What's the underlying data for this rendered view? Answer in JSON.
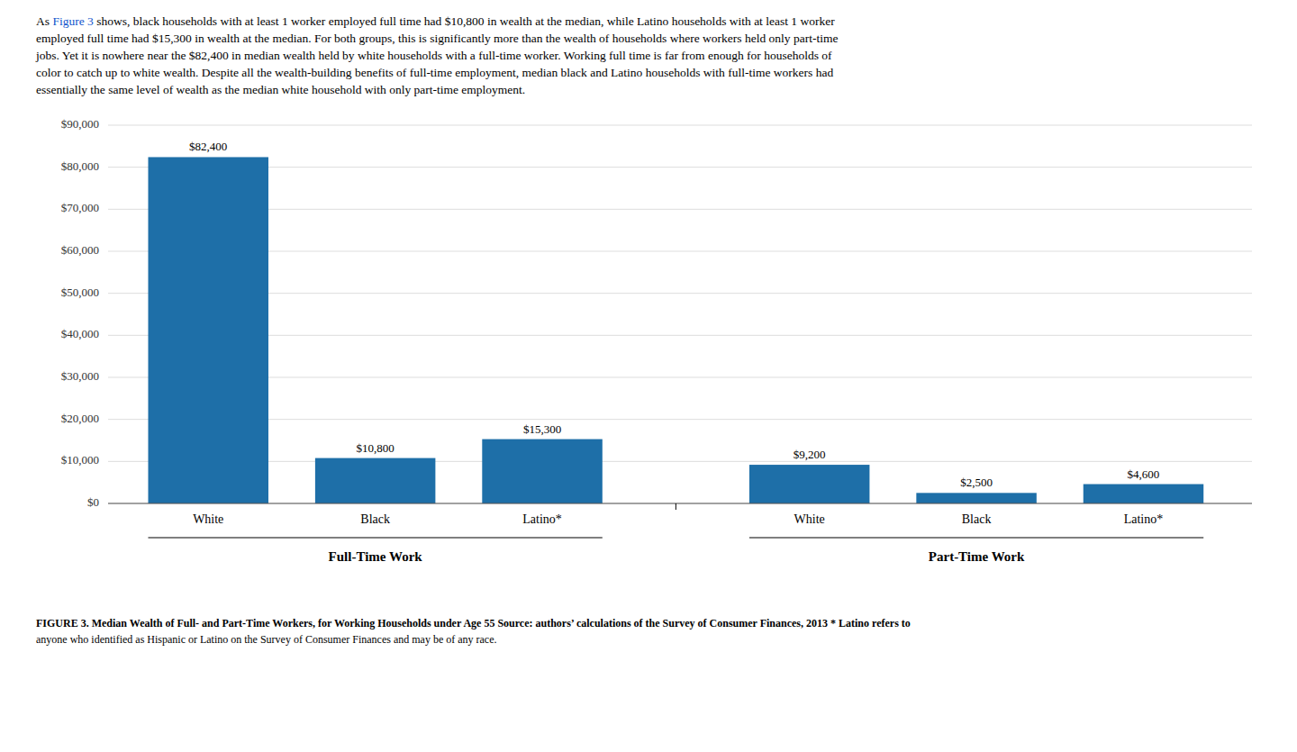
{
  "chart_data": {
    "type": "bar",
    "paragraph": {
      "before": "As ",
      "link": "Figure 3",
      "after": [
        " shows, black households with at least 1 worker employed full time had $10,800 in wealth at the median, while Latino households with at least 1 worker",
        "employed full time had $15,300 in wealth at the median. For both groups, this is significantly more than the wealth of households where workers held only part-time",
        "jobs. Yet it is nowhere near the $82,400 in median wealth held by white households with a full-time worker. Working full time is far from enough for households of",
        "color to catch up to white wealth. Despite all the wealth-building benefits of full-time employment, median black and Latino households with full-time workers had",
        "essentially the same level of wealth as the median white household with only part-time employment."
      ]
    },
    "categories": [
      "White",
      "Black",
      "Latino*",
      "White",
      "Black",
      "Latino*"
    ],
    "group_labels": [
      "Full-Time Work",
      "Part-Time Work"
    ],
    "values": [
      82400,
      10800,
      15300,
      9200,
      2500,
      4600
    ],
    "value_labels": [
      "$82,400",
      "$10,800",
      "$15,300",
      "$9,200",
      "$2,500",
      "$4,600"
    ],
    "data_labels": true,
    "color": "#1E6FA8",
    "ylim": [
      0,
      90000
    ],
    "yticks": [
      {
        "value": 0,
        "label": "$0"
      },
      {
        "value": 10000,
        "label": "$10,000"
      },
      {
        "value": 20000,
        "label": "$20,000"
      },
      {
        "value": 30000,
        "label": "$30,000"
      },
      {
        "value": 40000,
        "label": "$40,000"
      },
      {
        "value": 50000,
        "label": "$50,000"
      },
      {
        "value": 60000,
        "label": "$60,000"
      },
      {
        "value": 70000,
        "label": "$70,000"
      },
      {
        "value": 80000,
        "label": "$80,000"
      },
      {
        "value": 90000,
        "label": "$90,000"
      }
    ],
    "grid": true,
    "caption": [
      "FIGURE 3.  Median Wealth of Full- and Part-Time Workers, for Working Households under Age 55 Source: authors’ calculations of the Survey of Consumer Finances, 2013 * Latino refers to",
      "anyone who identified as Hispanic or Latino on the Survey of Consumer Finances and may be of any race."
    ]
  }
}
